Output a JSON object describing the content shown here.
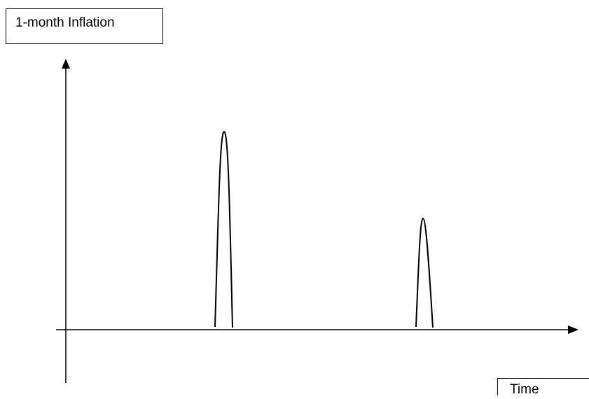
{
  "y_axis_label": "1-month Inflation",
  "x_axis_label": "Time"
}
